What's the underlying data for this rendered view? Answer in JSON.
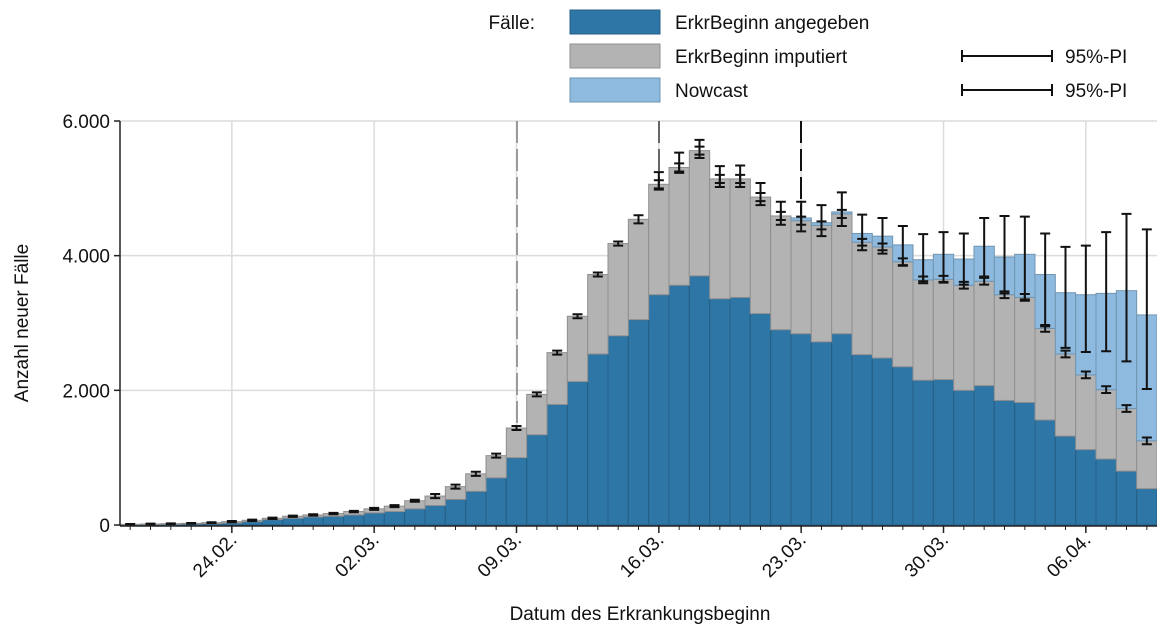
{
  "chart_data": {
    "type": "stacked_bar",
    "legend_title": "Fälle:",
    "x_label": "Datum des Erkrankungsbeginn",
    "y_label": "Anzahl neuer Fälle",
    "categories": [
      null,
      null,
      null,
      null,
      null,
      "24.02.",
      null,
      null,
      null,
      null,
      null,
      null,
      "02.03.",
      null,
      null,
      null,
      null,
      null,
      null,
      "09.03.",
      null,
      null,
      null,
      null,
      null,
      null,
      "16.03.",
      null,
      null,
      null,
      null,
      null,
      null,
      "23.03.",
      null,
      null,
      null,
      null,
      null,
      null,
      "30.03.",
      null,
      null,
      null,
      null,
      null,
      null,
      "06.04.",
      null,
      null,
      null
    ],
    "ylim": [
      0,
      6000
    ],
    "yticks": [
      0,
      {
        "value": 2000,
        "label": "2.000"
      },
      {
        "value": 4000,
        "label": "4.000"
      },
      {
        "value": 6000,
        "label": "6.000"
      }
    ],
    "grid": true,
    "series": [
      {
        "name": "ErkrBeginn angegeben",
        "color": "#2e76a6",
        "values": [
          5,
          8,
          10,
          15,
          20,
          30,
          50,
          80,
          100,
          120,
          130,
          150,
          180,
          200,
          240,
          290,
          380,
          500,
          700,
          1000,
          1340,
          1790,
          2130,
          2540,
          2810,
          3050,
          3420,
          3560,
          3700,
          3360,
          3380,
          3140,
          2900,
          2840,
          2720,
          2840,
          2530,
          2480,
          2350,
          2150,
          2160,
          2000,
          2070,
          1850,
          1820,
          1560,
          1320,
          1120,
          980,
          800,
          540
        ]
      },
      {
        "name": "ErkrBeginn imputiert",
        "color": "#b3b3b3",
        "values": [
          5,
          7,
          10,
          10,
          15,
          20,
          20,
          20,
          30,
          30,
          40,
          50,
          60,
          80,
          120,
          140,
          190,
          260,
          330,
          440,
          600,
          770,
          970,
          1180,
          1370,
          1490,
          1640,
          1750,
          1860,
          1780,
          1760,
          1730,
          1690,
          1680,
          1730,
          1780,
          1670,
          1650,
          1560,
          1490,
          1490,
          1560,
          1550,
          1570,
          1560,
          1360,
          1220,
          1110,
          1030,
          930,
          710
        ]
      },
      {
        "name": "Nowcast",
        "color": "#8dbade",
        "values": [
          0,
          0,
          0,
          0,
          0,
          0,
          0,
          0,
          0,
          0,
          0,
          0,
          0,
          0,
          0,
          0,
          0,
          0,
          0,
          0,
          0,
          0,
          0,
          0,
          0,
          0,
          0,
          0,
          0,
          0,
          0,
          0,
          0,
          40,
          40,
          30,
          130,
          160,
          250,
          300,
          370,
          390,
          520,
          560,
          640,
          800,
          910,
          1190,
          1430,
          1750,
          1870
        ]
      }
    ],
    "intervals": [
      {
        "name": "95%-PI",
        "lower": [
          5,
          10,
          15,
          20,
          30,
          40,
          60,
          90,
          120,
          140,
          160,
          190,
          225,
          265,
          345,
          400,
          540,
          730,
          1000,
          1410,
          1910,
          2530,
          3070,
          3690,
          4150,
          4480,
          5000,
          5250,
          5500,
          5080,
          5080,
          4810,
          4530,
          4460,
          4390,
          4560,
          4150,
          4080,
          3860,
          3590,
          3600,
          3510,
          3570,
          3370,
          3330,
          2870,
          2490,
          2180,
          1960,
          1680,
          1200
        ],
        "upper": [
          15,
          20,
          25,
          30,
          40,
          60,
          80,
          110,
          140,
          160,
          180,
          210,
          255,
          295,
          375,
          460,
          600,
          790,
          1060,
          1470,
          1970,
          2590,
          3130,
          3750,
          4210,
          4600,
          5120,
          5370,
          5620,
          5200,
          5200,
          4930,
          4650,
          4580,
          4510,
          4680,
          4250,
          4180,
          3960,
          3690,
          3700,
          3610,
          3670,
          3470,
          3430,
          2970,
          2590,
          2280,
          2060,
          1780,
          1300
        ]
      },
      {
        "name": "95%-PI",
        "lower": [
          null,
          null,
          null,
          null,
          null,
          null,
          null,
          null,
          null,
          null,
          null,
          null,
          null,
          null,
          null,
          null,
          null,
          null,
          null,
          null,
          null,
          null,
          null,
          null,
          null,
          null,
          4980,
          5230,
          5450,
          5020,
          5020,
          4750,
          4460,
          4360,
          4290,
          4440,
          4080,
          4030,
          3850,
          3620,
          3610,
          3570,
          3690,
          3440,
          3350,
          2950,
          2630,
          2570,
          2580,
          2430,
          2020
        ],
        "upper": [
          null,
          null,
          null,
          null,
          null,
          null,
          null,
          null,
          null,
          null,
          null,
          null,
          null,
          null,
          null,
          null,
          null,
          null,
          null,
          null,
          null,
          null,
          null,
          null,
          null,
          null,
          5240,
          5530,
          5720,
          5330,
          5340,
          5080,
          4800,
          4800,
          4750,
          4940,
          4610,
          4560,
          4440,
          4320,
          4350,
          4330,
          4560,
          4590,
          4580,
          4330,
          4130,
          4150,
          4350,
          4620,
          4390
        ]
      }
    ]
  }
}
